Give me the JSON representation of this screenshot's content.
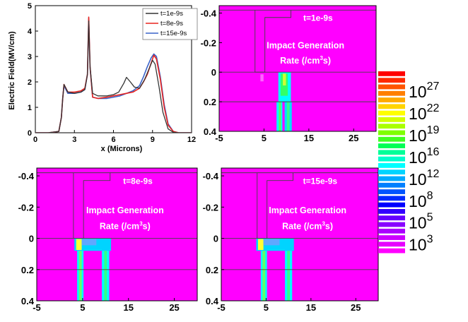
{
  "chart_data": [
    {
      "type": "line",
      "xlabel": "x (Microns)",
      "ylabel": "Electric Field(MV/cm)",
      "xlim": [
        0,
        12
      ],
      "ylim": [
        0,
        5
      ],
      "xticks": [
        "0",
        "3",
        "6",
        "9",
        "12"
      ],
      "yticks": [
        "0",
        "1",
        "2",
        "3",
        "4",
        "5"
      ],
      "legend_position": "top-right",
      "series": [
        {
          "name": "t=1e-9s",
          "color": "#333333",
          "x": [
            0,
            1.0,
            1.8,
            2.0,
            2.1,
            2.2,
            2.5,
            3.0,
            3.5,
            3.8,
            4.0,
            4.1,
            4.2,
            4.4,
            4.8,
            5.5,
            6.0,
            6.4,
            6.8,
            7.0,
            7.3,
            7.6,
            8.0,
            8.4,
            8.8,
            9.0,
            9.2,
            9.5,
            9.8,
            10.2,
            10.6,
            11.0,
            12
          ],
          "values": [
            0,
            0,
            0.05,
            0.6,
            1.35,
            1.9,
            1.6,
            1.55,
            1.6,
            1.7,
            2.3,
            4.4,
            2.6,
            1.55,
            1.45,
            1.45,
            1.5,
            1.6,
            1.95,
            2.18,
            2.0,
            1.8,
            1.75,
            2.1,
            2.6,
            2.85,
            2.7,
            1.8,
            0.8,
            0.15,
            0.02,
            0,
            0
          ]
        },
        {
          "name": "t=8e-9s",
          "color": "#e8231f",
          "x": [
            0,
            1.0,
            1.8,
            2.0,
            2.1,
            2.2,
            2.5,
            3.0,
            3.5,
            3.8,
            4.0,
            4.1,
            4.2,
            4.4,
            4.8,
            5.5,
            6.0,
            6.5,
            7.0,
            7.5,
            8.0,
            8.3,
            8.6,
            8.9,
            9.1,
            9.3,
            9.6,
            9.9,
            10.2,
            10.6,
            11.0,
            12
          ],
          "values": [
            0,
            0,
            0.05,
            0.6,
            1.35,
            1.9,
            1.6,
            1.6,
            1.65,
            1.75,
            2.3,
            4.55,
            2.6,
            1.4,
            1.35,
            1.4,
            1.45,
            1.5,
            1.55,
            1.6,
            1.75,
            2.0,
            2.3,
            2.75,
            3.05,
            2.9,
            2.1,
            1.0,
            0.3,
            0.05,
            0,
            0
          ]
        },
        {
          "name": "t=15e-9s",
          "color": "#3a63c8",
          "x": [
            0,
            1.0,
            1.8,
            2.0,
            2.1,
            2.2,
            2.5,
            3.0,
            3.5,
            3.8,
            4.0,
            4.1,
            4.2,
            4.4,
            4.8,
            5.5,
            6.0,
            6.5,
            7.0,
            7.5,
            8.0,
            8.3,
            8.6,
            8.9,
            9.1,
            9.3,
            9.6,
            9.9,
            10.2,
            10.6,
            11.0,
            12
          ],
          "values": [
            0,
            0,
            0.05,
            0.6,
            1.35,
            1.85,
            1.55,
            1.55,
            1.6,
            1.7,
            2.3,
            4.5,
            2.55,
            1.4,
            1.35,
            1.35,
            1.4,
            1.45,
            1.55,
            1.65,
            1.85,
            2.2,
            2.6,
            2.95,
            3.1,
            3.0,
            2.2,
            1.1,
            0.35,
            0.05,
            0,
            0
          ]
        }
      ]
    },
    {
      "type": "heatmap",
      "label_line1": "t=1e-9s",
      "label_line2": "Impact Generation",
      "label_line3": "Rate (/cm",
      "label_line3_sup": "3",
      "label_line3_end": "s)",
      "xlim": [
        -5,
        30
      ],
      "ylim": [
        -0.45,
        0.4
      ],
      "xticks": [
        "-5",
        "5",
        "15",
        "25"
      ],
      "yticks": [
        "-0.4",
        "-0.2",
        "0",
        "0.2",
        "0.4"
      ],
      "background_color": "#ff00ff"
    },
    {
      "type": "heatmap",
      "label_line1": "t=8e-9s",
      "label_line2": "Impact Generation",
      "label_line3": "Rate (/cm",
      "label_line3_sup": "3",
      "label_line3_end": "s)",
      "xlim": [
        -5,
        30
      ],
      "ylim": [
        -0.45,
        0.4
      ],
      "xticks": [
        "-5",
        "5",
        "15",
        "25"
      ],
      "yticks": [
        "-0.4",
        "-0.2",
        "0",
        "0.2",
        "0.4"
      ],
      "background_color": "#ff00ff"
    },
    {
      "type": "heatmap",
      "label_line1": "t=15e-9s",
      "label_line2": "Impact Generation",
      "label_line3": "Rate (/cm",
      "label_line3_sup": "3",
      "label_line3_end": "s)",
      "xlim": [
        -5,
        30
      ],
      "ylim": [
        -0.45,
        0.4
      ],
      "xticks": [
        "-5",
        "5",
        "15",
        "25"
      ],
      "yticks": [
        "-0.4",
        "-0.2",
        "0",
        "0.2",
        "0.4"
      ],
      "background_color": "#ff00ff"
    }
  ],
  "colorbar": {
    "labels": [
      {
        "base": "10",
        "exp": "27"
      },
      {
        "base": "10",
        "exp": "22"
      },
      {
        "base": "10",
        "exp": "19"
      },
      {
        "base": "10",
        "exp": "16"
      },
      {
        "base": "10",
        "exp": "12"
      },
      {
        "base": "10",
        "exp": "8"
      },
      {
        "base": "10",
        "exp": "5"
      },
      {
        "base": "10",
        "exp": "3"
      }
    ],
    "colors": [
      "#ff0000",
      "#ff2a00",
      "#ff5500",
      "#ff7f00",
      "#ffaa00",
      "#ffd400",
      "#ffff00",
      "#d4ff00",
      "#aaff00",
      "#7fff00",
      "#40ff20",
      "#00ff55",
      "#00ff99",
      "#00ffcc",
      "#00ffff",
      "#00d4ff",
      "#00aaff",
      "#007fff",
      "#0055ff",
      "#002aff",
      "#0000ff",
      "#3300ff",
      "#6600ff",
      "#8800ff",
      "#aa00ff",
      "#cc00ff",
      "#e600ff",
      "#ff00ff"
    ]
  }
}
